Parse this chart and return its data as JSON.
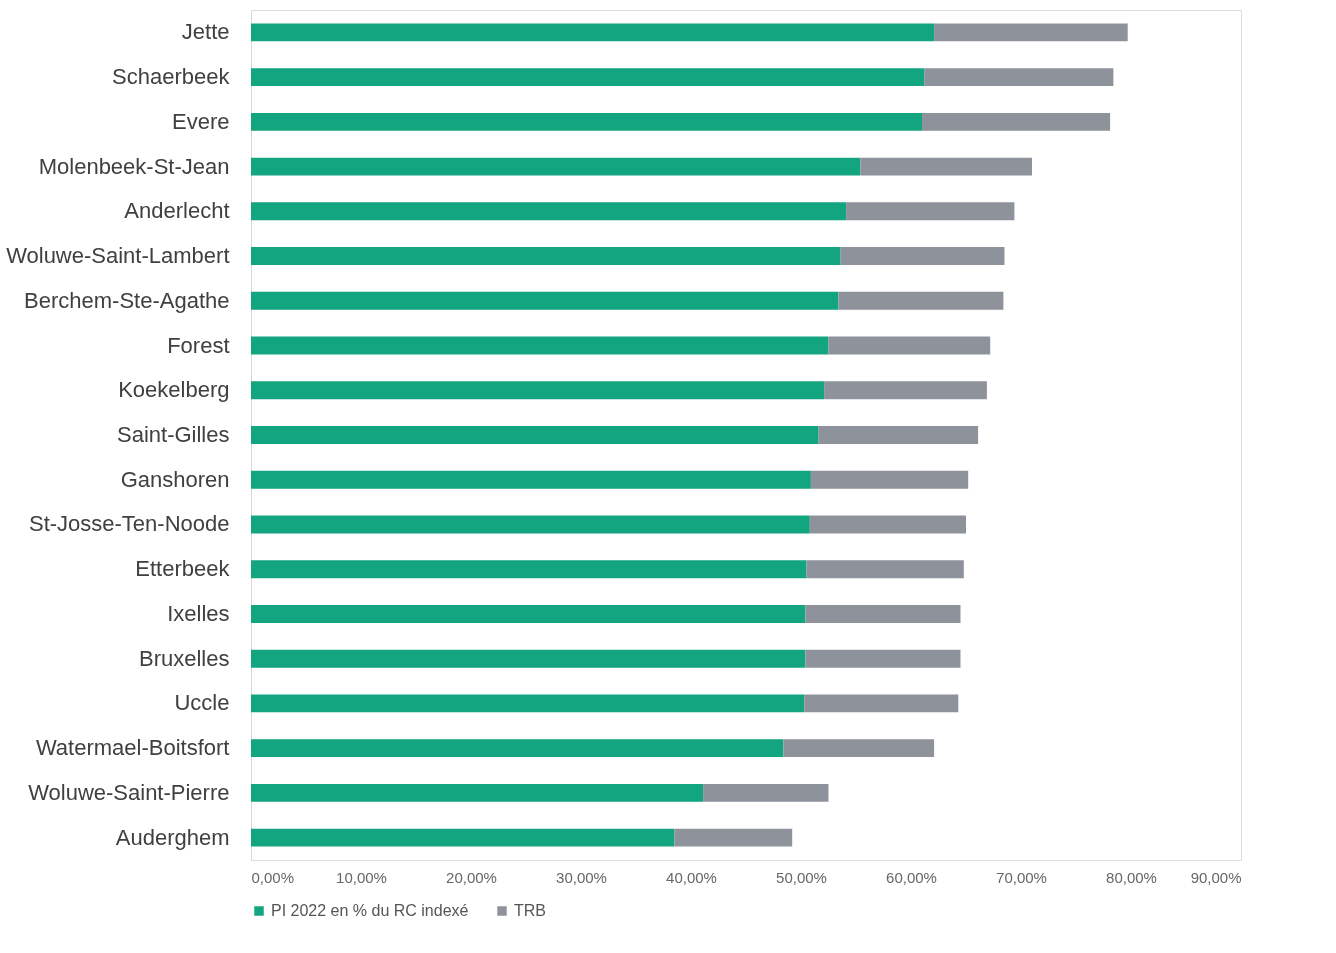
{
  "chart_data": {
    "type": "bar",
    "orientation": "horizontal",
    "stacked": true,
    "categories": [
      "Jette",
      "Schaerbeek",
      "Evere",
      "Molenbeek-St-Jean",
      "Anderlecht",
      "Woluwe-Saint-Lambert",
      "Berchem-Ste-Agathe",
      "Forest",
      "Koekelberg",
      "Saint-Gilles",
      "Ganshoren",
      "St-Josse-Ten-Noode",
      "Etterbeek",
      "Ixelles",
      "Bruxelles",
      "Uccle",
      "Watermael-Boitsfort",
      "Woluwe-Saint-Pierre",
      "Auderghem"
    ],
    "series": [
      {
        "name": "PI 2022 en % du RC indexé",
        "color": "#12a57f",
        "values": [
          62.1,
          61.2,
          61.0,
          55.4,
          54.1,
          53.6,
          53.4,
          52.5,
          52.1,
          51.6,
          50.9,
          50.8,
          50.5,
          50.4,
          50.4,
          50.3,
          48.4,
          41.1,
          38.5
        ]
      },
      {
        "name": "TRB",
        "color": "#8e939b",
        "values": [
          17.6,
          17.2,
          17.1,
          15.6,
          15.3,
          14.9,
          15.0,
          14.7,
          14.8,
          14.5,
          14.3,
          14.2,
          14.3,
          14.1,
          14.1,
          14.0,
          13.7,
          11.4,
          10.7
        ]
      }
    ],
    "xlim": [
      0,
      90
    ],
    "xticks": [
      {
        "value": 0,
        "label": "0,00%"
      },
      {
        "value": 10,
        "label": "10,00%"
      },
      {
        "value": 20,
        "label": "20,00%"
      },
      {
        "value": 30,
        "label": "30,00%"
      },
      {
        "value": 40,
        "label": "40,00%"
      },
      {
        "value": 50,
        "label": "50,00%"
      },
      {
        "value": 60,
        "label": "60,00%"
      },
      {
        "value": 70,
        "label": "70,00%"
      },
      {
        "value": 80,
        "label": "80,00%"
      },
      {
        "value": 90,
        "label": "90,00%"
      }
    ],
    "grid": false,
    "legend": "bottom"
  }
}
